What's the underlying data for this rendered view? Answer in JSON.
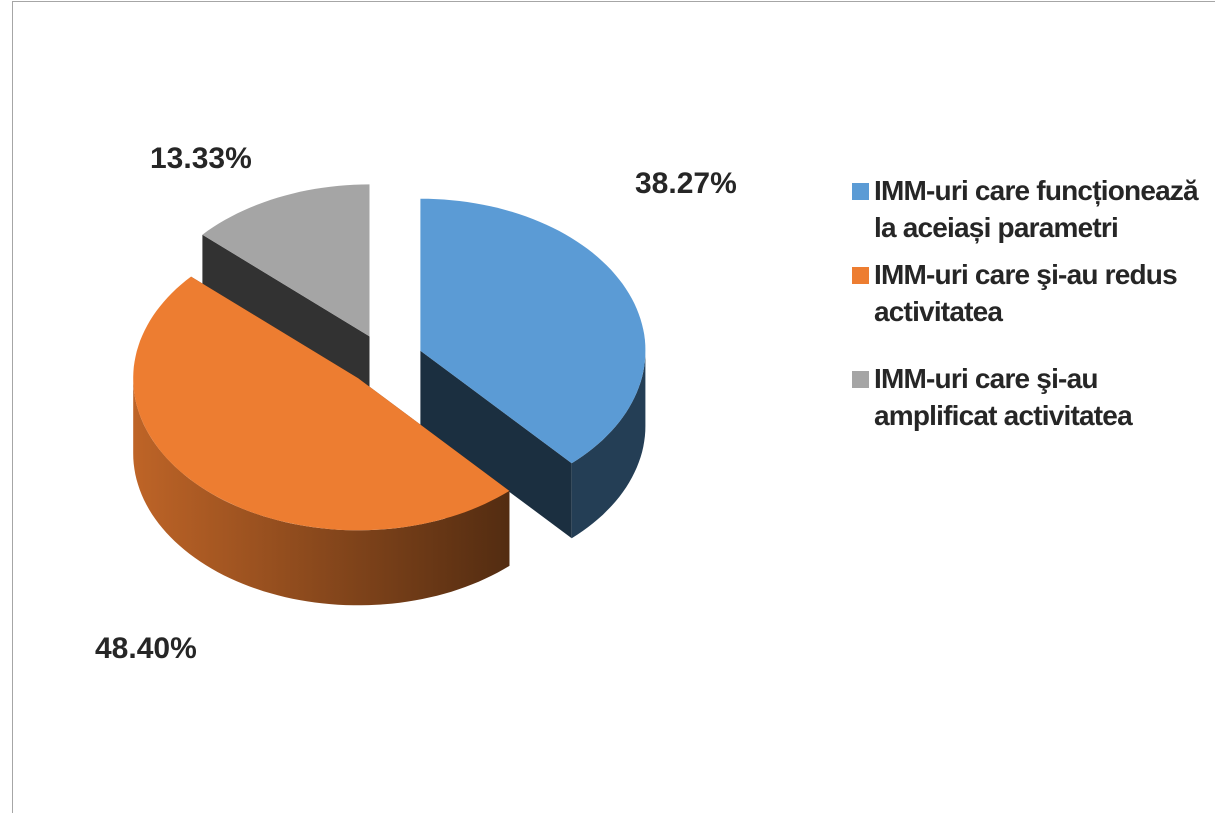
{
  "chart_data": {
    "type": "pie3d",
    "categories": [
      "IMM-uri care funcționează la aceiași parametri",
      "IMM-uri care şi-au redus activitatea",
      "IMM-uri care şi-au amplificat activitatea"
    ],
    "values": [
      38.27,
      48.4,
      13.33
    ],
    "value_labels": [
      "38.27%",
      "48.40%",
      "13.33%"
    ],
    "colors": [
      "#5b9bd5",
      "#ed7d31",
      "#a5a5a5"
    ],
    "legend": "right"
  }
}
